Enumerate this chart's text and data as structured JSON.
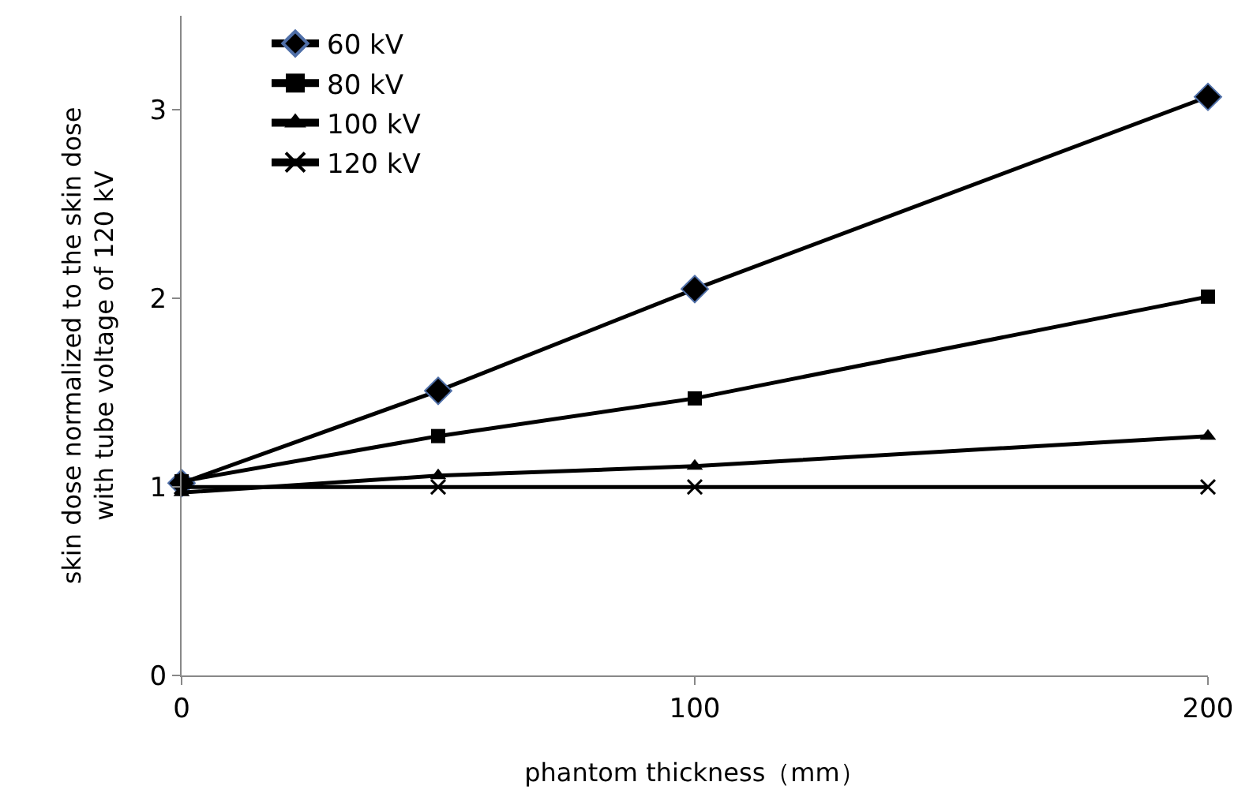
{
  "chart_data": {
    "type": "line",
    "xlabel": "phantom thickness（mm）",
    "ylabel": "skin dose normalized to the skin dose\nwith tube voltage of 120 kV",
    "x": [
      0,
      50,
      100,
      200
    ],
    "xlim": [
      0,
      200
    ],
    "xticks": [
      0,
      100,
      200
    ],
    "ylim": [
      0,
      3.5
    ],
    "yticks": [
      0,
      1,
      2,
      3
    ],
    "grid": false,
    "legend": "top left",
    "line_style": "solid",
    "series": [
      {
        "name": "60 kV",
        "color": "#000000",
        "marker": "diamond",
        "values": [
          1.02,
          1.51,
          2.05,
          3.07
        ]
      },
      {
        "name": "80 kV",
        "color": "#000000",
        "marker": "square",
        "values": [
          1.03,
          1.27,
          1.47,
          2.01
        ]
      },
      {
        "name": "100 kV",
        "color": "#000000",
        "marker": "triangle",
        "values": [
          0.97,
          1.06,
          1.11,
          1.27
        ]
      },
      {
        "name": "120 kV",
        "color": "#000000",
        "marker": "cross",
        "values": [
          1,
          1,
          1,
          1
        ]
      }
    ]
  }
}
